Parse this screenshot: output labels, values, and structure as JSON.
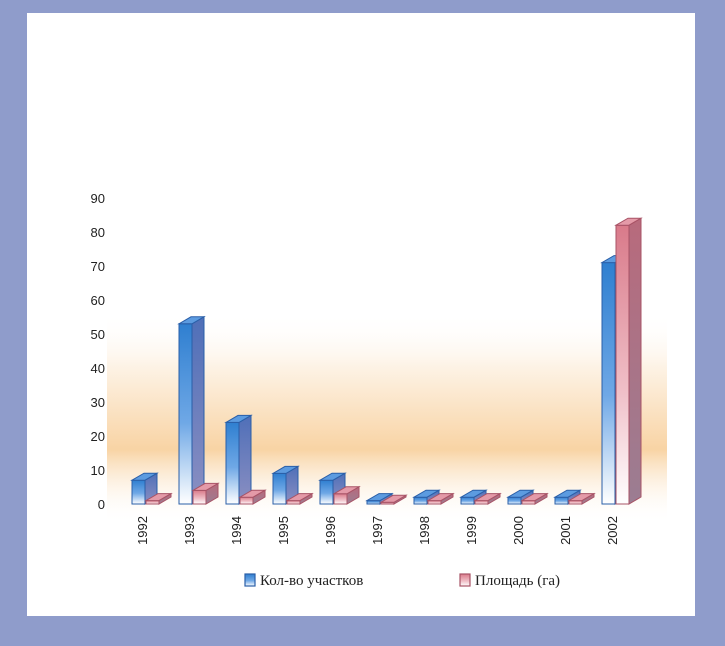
{
  "chart_data": {
    "type": "bar",
    "categories": [
      "1992",
      "1993",
      "1994",
      "1995",
      "1996",
      "1997",
      "1998",
      "1999",
      "2000",
      "2001",
      "2002"
    ],
    "series": [
      {
        "name": "Кол-во участков",
        "values": [
          7,
          53,
          24,
          9,
          7,
          1,
          2,
          2,
          2,
          2,
          71
        ]
      },
      {
        "name": "Площадь (га)",
        "values": [
          1,
          4,
          2,
          1,
          3,
          0.5,
          1,
          1,
          1,
          1,
          82
        ]
      }
    ],
    "yticks": [
      "0",
      "10",
      "20",
      "30",
      "40",
      "50",
      "60",
      "70",
      "80",
      "90"
    ],
    "ylim": [
      0,
      90
    ],
    "title": "",
    "xlabel": "",
    "ylabel": "",
    "grid": false,
    "legend_position": "bottom",
    "colors": {
      "series1_front": "#2f7fd0",
      "series1_side": "#4f6fb8",
      "series1_top": "#5c9be0",
      "series2_front": "#d97a8a",
      "series2_side": "#b86a7c",
      "series2_top": "#e49aa8",
      "page_border": "#8f9ccb",
      "glow": "#f3b05a"
    }
  }
}
